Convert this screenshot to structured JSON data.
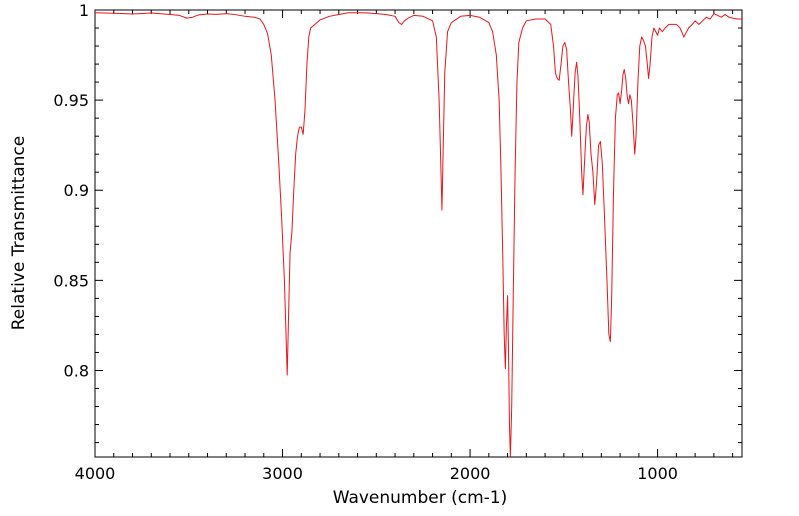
{
  "chart_data": {
    "type": "line",
    "title": "",
    "xlabel": "Wavenumber (cm-1)",
    "ylabel": "Relative Transmittance",
    "xlim": [
      4000,
      550
    ],
    "ylim": [
      0.752,
      1.0
    ],
    "x_reversed": true,
    "grid": false,
    "legend": "none",
    "x_ticks": [
      4000,
      3000,
      2000,
      1000
    ],
    "x_tick_labels": [
      "4000",
      "3000",
      "2000",
      "1000"
    ],
    "y_ticks": [
      0.8,
      0.85,
      0.9,
      0.95,
      1.0
    ],
    "y_tick_labels": [
      "0.8",
      "0.85",
      "0.9",
      "0.95",
      "1"
    ],
    "line_color": "#e8161b",
    "series": [
      {
        "points": [
          [
            4000,
            0.9985
          ],
          [
            3900,
            0.9982
          ],
          [
            3800,
            0.9978
          ],
          [
            3700,
            0.9983
          ],
          [
            3600,
            0.9975
          ],
          [
            3550,
            0.997
          ],
          [
            3510,
            0.9955
          ],
          [
            3480,
            0.996
          ],
          [
            3450,
            0.9972
          ],
          [
            3400,
            0.9978
          ],
          [
            3350,
            0.9976
          ],
          [
            3300,
            0.998
          ],
          [
            3250,
            0.9974
          ],
          [
            3200,
            0.9965
          ],
          [
            3150,
            0.996
          ],
          [
            3120,
            0.995
          ],
          [
            3100,
            0.992
          ],
          [
            3080,
            0.987
          ],
          [
            3060,
            0.975
          ],
          [
            3040,
            0.95
          ],
          [
            3020,
            0.915
          ],
          [
            3005,
            0.885
          ],
          [
            2990,
            0.85
          ],
          [
            2980,
            0.815
          ],
          [
            2975,
            0.7975
          ],
          [
            2968,
            0.83
          ],
          [
            2960,
            0.865
          ],
          [
            2950,
            0.877
          ],
          [
            2940,
            0.9
          ],
          [
            2930,
            0.92
          ],
          [
            2920,
            0.93
          ],
          [
            2910,
            0.935
          ],
          [
            2900,
            0.935
          ],
          [
            2890,
            0.931
          ],
          [
            2880,
            0.945
          ],
          [
            2870,
            0.97
          ],
          [
            2860,
            0.985
          ],
          [
            2850,
            0.99
          ],
          [
            2800,
            0.9945
          ],
          [
            2750,
            0.9965
          ],
          [
            2700,
            0.9975
          ],
          [
            2650,
            0.9985
          ],
          [
            2600,
            0.9985
          ],
          [
            2550,
            0.9984
          ],
          [
            2500,
            0.998
          ],
          [
            2450,
            0.9975
          ],
          [
            2400,
            0.9965
          ],
          [
            2380,
            0.993
          ],
          [
            2365,
            0.992
          ],
          [
            2350,
            0.994
          ],
          [
            2330,
            0.9955
          ],
          [
            2300,
            0.997
          ],
          [
            2250,
            0.9965
          ],
          [
            2200,
            0.994
          ],
          [
            2180,
            0.985
          ],
          [
            2165,
            0.95
          ],
          [
            2155,
            0.91
          ],
          [
            2150,
            0.889
          ],
          [
            2145,
            0.915
          ],
          [
            2135,
            0.965
          ],
          [
            2120,
            0.988
          ],
          [
            2100,
            0.993
          ],
          [
            2050,
            0.9965
          ],
          [
            2000,
            0.997
          ],
          [
            1950,
            0.996
          ],
          [
            1900,
            0.993
          ],
          [
            1880,
            0.988
          ],
          [
            1860,
            0.975
          ],
          [
            1845,
            0.95
          ],
          [
            1835,
            0.91
          ],
          [
            1825,
            0.86
          ],
          [
            1818,
            0.82
          ],
          [
            1812,
            0.801
          ],
          [
            1806,
            0.825
          ],
          [
            1800,
            0.8415
          ],
          [
            1795,
            0.81
          ],
          [
            1790,
            0.77
          ],
          [
            1785,
            0.752
          ],
          [
            1778,
            0.78
          ],
          [
            1770,
            0.84
          ],
          [
            1760,
            0.91
          ],
          [
            1750,
            0.96
          ],
          [
            1740,
            0.982
          ],
          [
            1720,
            0.99
          ],
          [
            1700,
            0.994
          ],
          [
            1650,
            0.995
          ],
          [
            1600,
            0.995
          ],
          [
            1570,
            0.992
          ],
          [
            1555,
            0.98
          ],
          [
            1545,
            0.965
          ],
          [
            1535,
            0.962
          ],
          [
            1525,
            0.961
          ],
          [
            1515,
            0.97
          ],
          [
            1505,
            0.98
          ],
          [
            1495,
            0.982
          ],
          [
            1485,
            0.978
          ],
          [
            1475,
            0.96
          ],
          [
            1465,
            0.945
          ],
          [
            1458,
            0.93
          ],
          [
            1450,
            0.945
          ],
          [
            1440,
            0.965
          ],
          [
            1432,
            0.971
          ],
          [
            1425,
            0.964
          ],
          [
            1415,
            0.94
          ],
          [
            1405,
            0.91
          ],
          [
            1398,
            0.8975
          ],
          [
            1390,
            0.915
          ],
          [
            1380,
            0.935
          ],
          [
            1372,
            0.942
          ],
          [
            1365,
            0.938
          ],
          [
            1355,
            0.92
          ],
          [
            1345,
            0.91
          ],
          [
            1335,
            0.892
          ],
          [
            1325,
            0.905
          ],
          [
            1315,
            0.925
          ],
          [
            1305,
            0.927
          ],
          [
            1295,
            0.915
          ],
          [
            1285,
            0.89
          ],
          [
            1270,
            0.85
          ],
          [
            1260,
            0.82
          ],
          [
            1252,
            0.816
          ],
          [
            1245,
            0.84
          ],
          [
            1235,
            0.9
          ],
          [
            1225,
            0.94
          ],
          [
            1215,
            0.953
          ],
          [
            1208,
            0.954
          ],
          [
            1200,
            0.948
          ],
          [
            1192,
            0.955
          ],
          [
            1185,
            0.964
          ],
          [
            1178,
            0.967
          ],
          [
            1170,
            0.962
          ],
          [
            1162,
            0.952
          ],
          [
            1155,
            0.948
          ],
          [
            1148,
            0.953
          ],
          [
            1140,
            0.95
          ],
          [
            1130,
            0.935
          ],
          [
            1122,
            0.92
          ],
          [
            1115,
            0.93
          ],
          [
            1105,
            0.96
          ],
          [
            1095,
            0.98
          ],
          [
            1085,
            0.985
          ],
          [
            1075,
            0.983
          ],
          [
            1065,
            0.98
          ],
          [
            1055,
            0.97
          ],
          [
            1048,
            0.962
          ],
          [
            1040,
            0.97
          ],
          [
            1030,
            0.985
          ],
          [
            1020,
            0.99
          ],
          [
            1010,
            0.988
          ],
          [
            1000,
            0.986
          ],
          [
            990,
            0.99
          ],
          [
            975,
            0.988
          ],
          [
            960,
            0.99
          ],
          [
            940,
            0.992
          ],
          [
            920,
            0.992
          ],
          [
            900,
            0.992
          ],
          [
            880,
            0.99
          ],
          [
            860,
            0.985
          ],
          [
            850,
            0.987
          ],
          [
            835,
            0.99
          ],
          [
            815,
            0.992
          ],
          [
            800,
            0.994
          ],
          [
            780,
            0.992
          ],
          [
            760,
            0.994
          ],
          [
            740,
            0.996
          ],
          [
            720,
            0.995
          ],
          [
            700,
            0.998
          ],
          [
            680,
            0.997
          ],
          [
            660,
            0.996
          ],
          [
            640,
            0.9975
          ],
          [
            620,
            0.996
          ],
          [
            600,
            0.9955
          ],
          [
            575,
            0.995
          ],
          [
            550,
            0.995
          ]
        ]
      }
    ]
  }
}
